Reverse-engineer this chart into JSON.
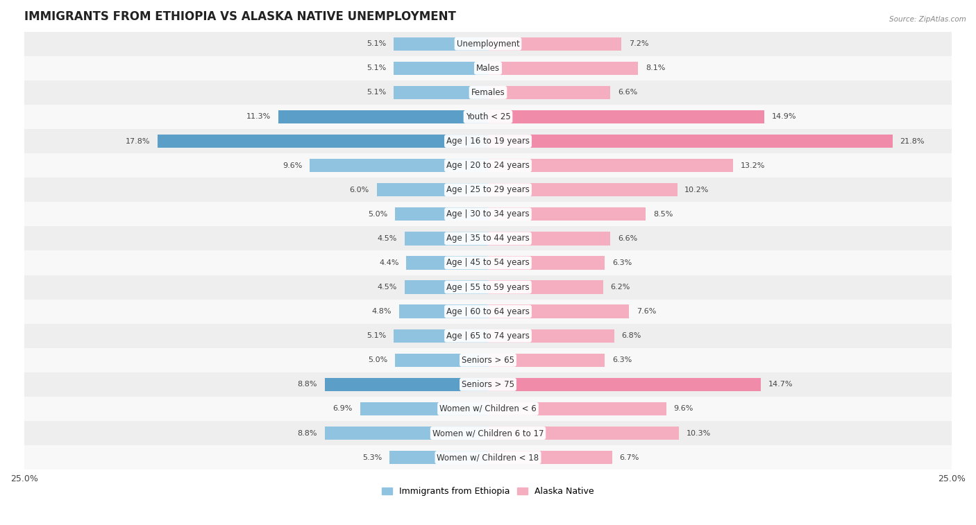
{
  "title": "IMMIGRANTS FROM ETHIOPIA VS ALASKA NATIVE UNEMPLOYMENT",
  "source": "Source: ZipAtlas.com",
  "categories": [
    "Unemployment",
    "Males",
    "Females",
    "Youth < 25",
    "Age | 16 to 19 years",
    "Age | 20 to 24 years",
    "Age | 25 to 29 years",
    "Age | 30 to 34 years",
    "Age | 35 to 44 years",
    "Age | 45 to 54 years",
    "Age | 55 to 59 years",
    "Age | 60 to 64 years",
    "Age | 65 to 74 years",
    "Seniors > 65",
    "Seniors > 75",
    "Women w/ Children < 6",
    "Women w/ Children 6 to 17",
    "Women w/ Children < 18"
  ],
  "ethiopia_values": [
    5.1,
    5.1,
    5.1,
    11.3,
    17.8,
    9.6,
    6.0,
    5.0,
    4.5,
    4.4,
    4.5,
    4.8,
    5.1,
    5.0,
    8.8,
    6.9,
    8.8,
    5.3
  ],
  "alaska_values": [
    7.2,
    8.1,
    6.6,
    14.9,
    21.8,
    13.2,
    10.2,
    8.5,
    6.6,
    6.3,
    6.2,
    7.6,
    6.8,
    6.3,
    14.7,
    9.6,
    10.3,
    6.7
  ],
  "ethiopia_color": "#8fc3e0",
  "alaska_color": "#f5aec0",
  "ethiopia_highlight_color": "#5b9fc8",
  "alaska_highlight_color": "#f08caa",
  "highlight_rows": [
    3,
    4,
    14
  ],
  "xlim": 25.0,
  "row_bg_light": "#eeeeee",
  "row_bg_white": "#f8f8f8",
  "title_fontsize": 12,
  "label_fontsize": 8.5,
  "value_fontsize": 8,
  "legend_ethiopia": "Immigrants from Ethiopia",
  "legend_alaska": "Alaska Native",
  "bar_height": 0.55
}
